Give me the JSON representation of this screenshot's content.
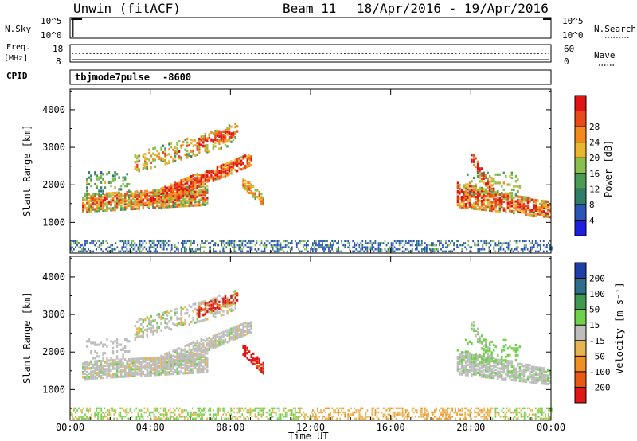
{
  "header": {
    "station": "Unwin (fitACF)",
    "beam": "Beam 11",
    "date_range": "18/Apr/2016 - 19/Apr/2016"
  },
  "top_strip": {
    "left_label": "N.Sky",
    "right_label": "N.Search",
    "ticks": [
      "10^5",
      "10^0"
    ]
  },
  "freq_strip": {
    "left_label_line1": "Freq.",
    "left_label_line2": "[MHz]",
    "right_label": "Nave",
    "left_ticks": [
      "18",
      "8"
    ],
    "right_ticks": [
      "60",
      "0"
    ]
  },
  "cpid": {
    "label": "CPID",
    "mode": "tbjmode7pulse",
    "value": "-8600"
  },
  "chart_data": [
    {
      "type": "heatmap",
      "name": "power",
      "ylabel": "Slant Range [km]",
      "y_ticks": [
        1000,
        2000,
        3000,
        4000
      ],
      "ylim": [
        180,
        4550
      ],
      "colorbar": {
        "label": "Power [dB]",
        "ticks": [
          "4",
          "8",
          "12",
          "16",
          "20",
          "24",
          "28"
        ],
        "colors": [
          "#1f1fe0",
          "#2a55b8",
          "#2f7e6a",
          "#4c9b55",
          "#88c04e",
          "#e8b630",
          "#f28a1d",
          "#e84b18",
          "#e01515"
        ]
      }
    },
    {
      "type": "heatmap",
      "name": "velocity",
      "ylabel": "Slant Range [km]",
      "y_ticks": [
        1000,
        2000,
        3000,
        4000
      ],
      "ylim": [
        180,
        4550
      ],
      "colorbar": {
        "label": "Velocity [m s⁻¹]",
        "ticks": [
          "200",
          "100",
          "50",
          "15",
          "-15",
          "-50",
          "-100",
          "-200"
        ],
        "colors": [
          "#1e3fa8",
          "#2f6e8a",
          "#3f9a50",
          "#6fd04a",
          "#bdbdbd",
          "#e6b552",
          "#f08f22",
          "#e85a12",
          "#e01515"
        ]
      }
    }
  ],
  "x_axis": {
    "label": "Time UT",
    "ticks": [
      "00:00",
      "04:00",
      "08:00",
      "12:00",
      "16:00",
      "20:00",
      "00:00"
    ]
  }
}
